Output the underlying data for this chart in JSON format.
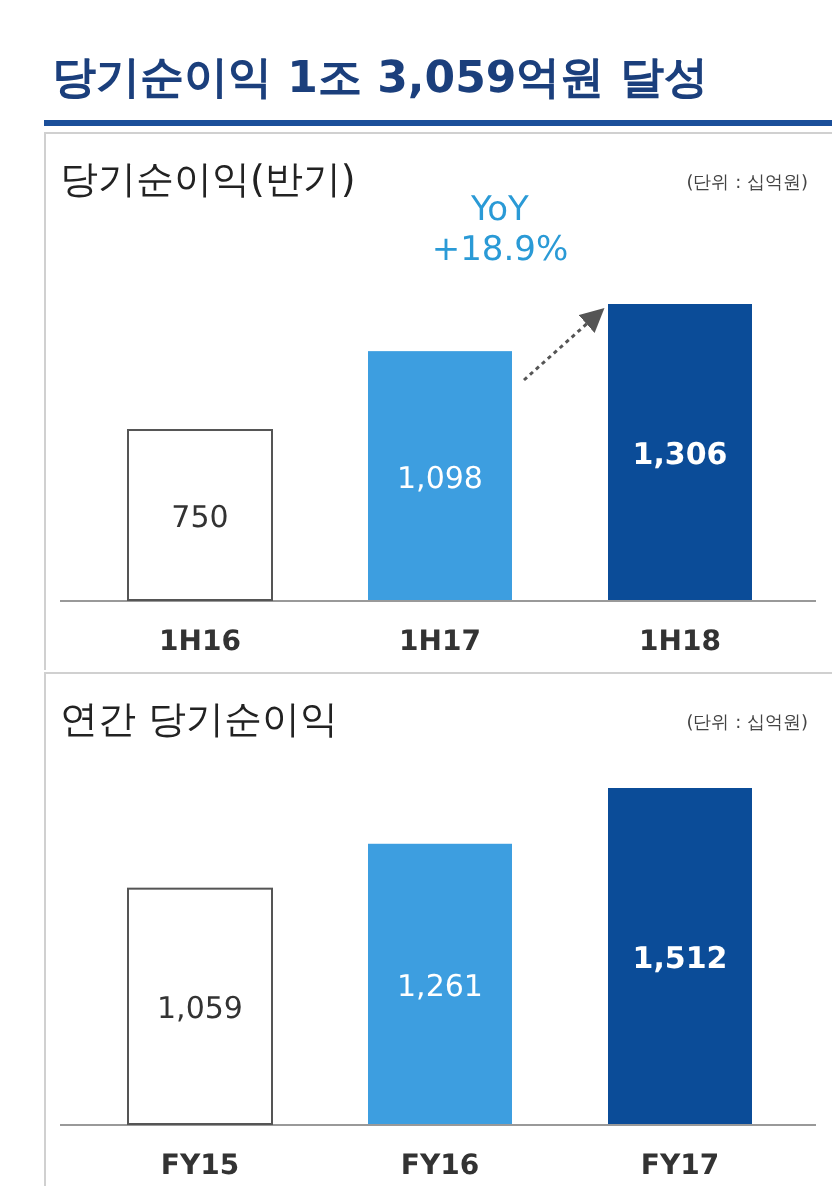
{
  "chart_data": [
    {
      "type": "bar",
      "title": "당기순이익 1조 3,059억원 달성",
      "subtitle": "당기순이익(반기)",
      "categories": [
        "1H16",
        "1H17",
        "1H18"
      ],
      "values": [
        750,
        1098,
        1306
      ],
      "colors": [
        "#ffffff",
        "#3d9ee0",
        "#0b4c98"
      ],
      "value_labels": [
        "750",
        "1,098",
        "1,306"
      ],
      "annotations": [
        "(단위 : 십억원)",
        "YoY\n+18.9%"
      ]
    },
    {
      "type": "bar",
      "subtitle": "연간 당기순이익",
      "categories": [
        "FY15",
        "FY16",
        "FY17"
      ],
      "values": [
        1059,
        1261,
        1512
      ],
      "colors": [
        "#ffffff",
        "#3d9ee0",
        "#0b4c98"
      ],
      "value_labels": [
        "1,059",
        "1,261",
        "1,512"
      ],
      "annotations": [
        "(단위 : 십억원)"
      ]
    }
  ]
}
